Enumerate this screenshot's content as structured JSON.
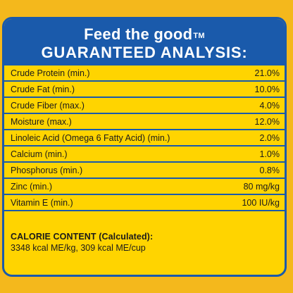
{
  "header": {
    "tagline": "Feed the good",
    "trademark": "TM",
    "title": "GUARANTEED ANALYSIS:"
  },
  "analysis": [
    {
      "name": "Crude Protein (min.)",
      "value": "21.0%"
    },
    {
      "name": "Crude Fat (min.)",
      "value": "10.0%"
    },
    {
      "name": "Crude Fiber (max.)",
      "value": "4.0%"
    },
    {
      "name": "Moisture (max.)",
      "value": "12.0%"
    },
    {
      "name": "Linoleic Acid (Omega 6 Fatty Acid) (min.)",
      "value": "2.0%"
    },
    {
      "name": "Calcium (min.)",
      "value": "1.0%"
    },
    {
      "name": "Phosphorus (min.)",
      "value": "0.8%"
    },
    {
      "name": "Zinc (min.)",
      "value": "80 mg/kg"
    },
    {
      "name": "Vitamin E (min.)",
      "value": "100 IU/kg"
    }
  ],
  "calorie": {
    "title": "CALORIE CONTENT (Calculated):",
    "text": "3348 kcal ME/kg, 309 kcal ME/cup"
  },
  "colors": {
    "background": "#f4b81c",
    "panel": "#ffd400",
    "brand_blue": "#1a5aab"
  }
}
